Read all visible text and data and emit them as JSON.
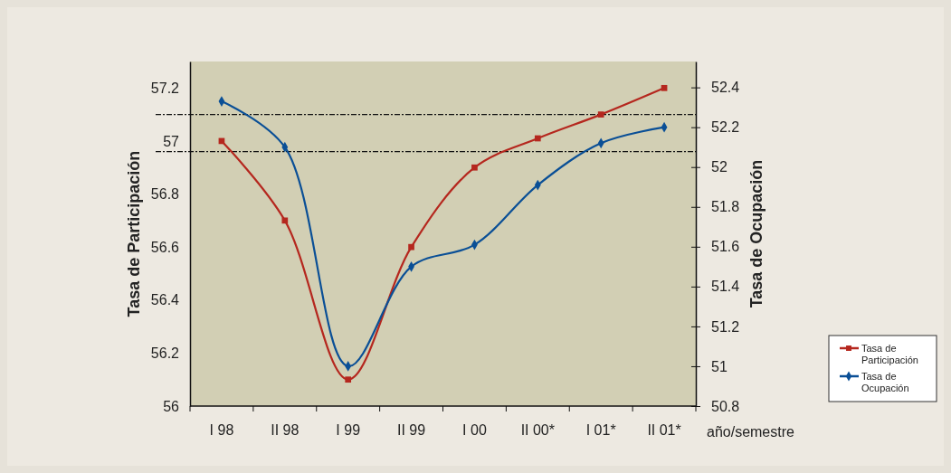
{
  "chart_data": {
    "type": "line",
    "categories": [
      "I 98",
      "II 98",
      "I 99",
      "II 99",
      "I 00",
      "II 00*",
      "I 01*",
      "II 01*"
    ],
    "xlabel": "año/semestre",
    "ylabel": "Tasa de Participación",
    "y2label": "Tasa de Ocupación",
    "ylim": [
      56,
      57.3
    ],
    "yticks": [
      56,
      56.2,
      56.4,
      56.6,
      56.8,
      57,
      57.2
    ],
    "y2lim": [
      50.8,
      52.53
    ],
    "y2ticks": [
      50.8,
      51,
      51.2,
      51.4,
      51.6,
      51.8,
      52,
      52.2,
      52.4
    ],
    "series": [
      {
        "name": "Tasa de Participación",
        "color": "#b5271e",
        "marker": "square",
        "values": [
          57.0,
          56.7,
          56.1,
          56.6,
          56.9,
          57.01,
          57.1,
          57.2
        ]
      },
      {
        "name": "Tasa de Ocupación",
        "color": "#0a4f96",
        "marker": "diamond",
        "axis": "y2",
        "values": [
          52.33,
          52.1,
          51.0,
          51.5,
          51.61,
          51.91,
          52.12,
          52.2
        ]
      }
    ],
    "ref_lines": [
      {
        "axis": "y",
        "value": 57.1,
        "line_style": "dashdot"
      },
      {
        "axis": "y",
        "value": 56.96,
        "line_style": "dashdot"
      }
    ],
    "grid": false,
    "legend": "bottom right"
  }
}
